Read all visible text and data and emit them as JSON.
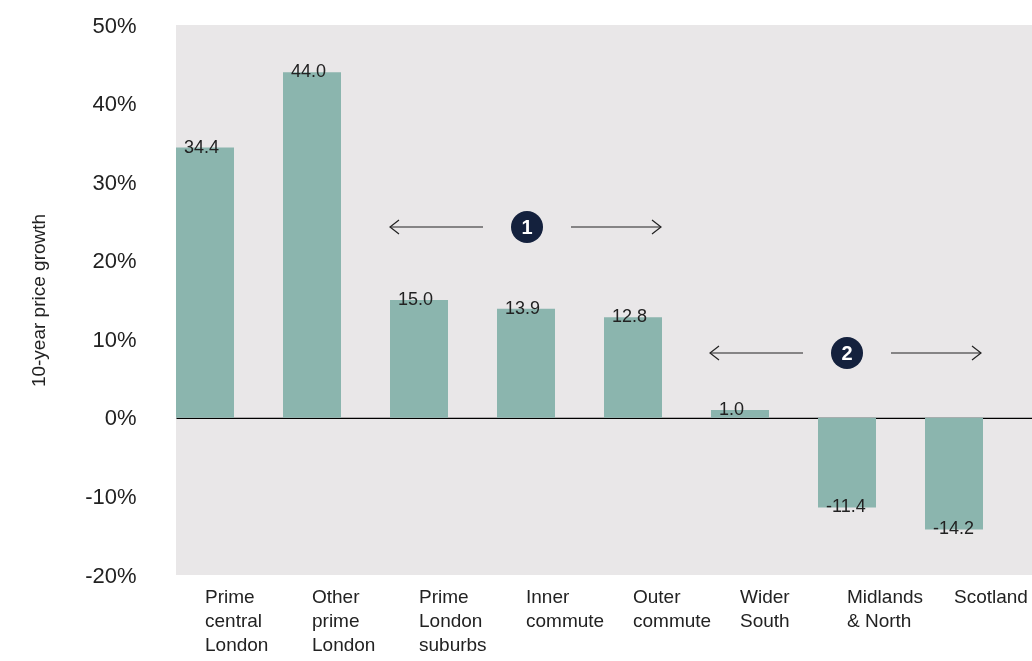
{
  "chart_data": {
    "type": "bar",
    "ylabel": "10-year price growth",
    "categories": [
      "Prime central London",
      "Other prime London",
      "Prime London suburbs",
      "Inner commute",
      "Outer commute",
      "Wider South",
      "Midlands & North",
      "Scotland"
    ],
    "values": [
      34.4,
      44.0,
      15.0,
      13.9,
      12.8,
      1.0,
      -11.4,
      -14.2
    ],
    "value_labels": [
      "34.4",
      "44.0",
      "15.0",
      "13.9",
      "12.8",
      "1.0",
      "-11.4",
      "-14.2"
    ],
    "color": "#8bb5ae",
    "ylim": [
      -20,
      50
    ],
    "yticks": [
      {
        "value": -20,
        "label": "-20%"
      },
      {
        "value": -10,
        "label": "-10%"
      },
      {
        "value": 0,
        "label": "0%"
      },
      {
        "value": 10,
        "label": "10%"
      },
      {
        "value": 20,
        "label": "20%"
      },
      {
        "value": 30,
        "label": "30%"
      },
      {
        "value": 40,
        "label": "40%"
      },
      {
        "value": 50,
        "label": "50%"
      }
    ],
    "annotations": [
      "1",
      "2"
    ]
  }
}
